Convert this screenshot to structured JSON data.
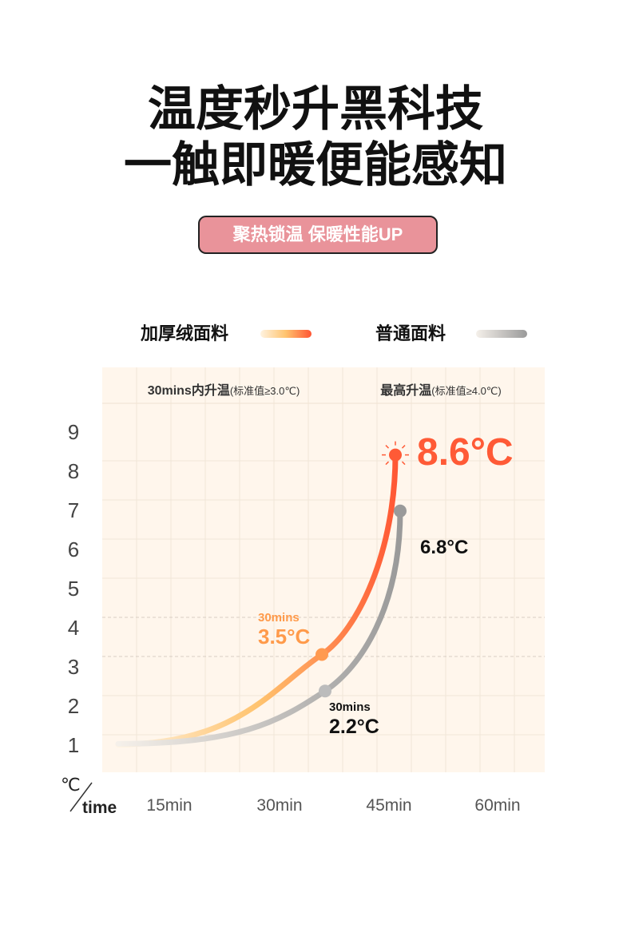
{
  "header": {
    "title_line1": "温度秒升黑科技",
    "title_line2": "一触即暖便能感知",
    "badge": "聚热锁温 保暖性能UP"
  },
  "chart_data": {
    "type": "line",
    "title": "",
    "legend": [
      {
        "name": "加厚绒面料",
        "colors": [
          "#fff3e0",
          "#ffc36e",
          "#ff5533"
        ]
      },
      {
        "name": "普通面料",
        "colors": [
          "#f5f0ea",
          "#9a9a9a"
        ]
      }
    ],
    "legend_placement": "top",
    "column_headers": [
      {
        "main": "30mins内升温",
        "note": "(标准值≥3.0℃)"
      },
      {
        "main": "最高升温",
        "note": "(标准值≥4.0℃)"
      }
    ],
    "ylabel": "℃",
    "xlabel": "time",
    "y_ticks": [
      9,
      8,
      7,
      6,
      5,
      4,
      3,
      2,
      1
    ],
    "x_ticks": [
      "15min",
      "30min",
      "45min",
      "60min"
    ],
    "grid": true,
    "series": [
      {
        "name": "加厚绒面料",
        "color": "#ff5a36",
        "points": [
          {
            "t": 0,
            "v": 1.2
          },
          {
            "t": 30,
            "v": 3.5
          },
          {
            "t": 45,
            "v": 8.6
          }
        ],
        "annotations": [
          {
            "label": "30mins",
            "value": "3.5°C",
            "color": "#ff9a4a"
          },
          {
            "value": "8.6°C",
            "color": "#ff5a36"
          }
        ]
      },
      {
        "name": "普通面料",
        "color": "#9a9a9a",
        "points": [
          {
            "t": 0,
            "v": 0.85
          },
          {
            "t": 30,
            "v": 2.2
          },
          {
            "t": 45,
            "v": 6.8
          }
        ],
        "annotations": [
          {
            "label": "30mins",
            "value": "2.2°C",
            "color": "#111111"
          },
          {
            "value": "6.8°C",
            "color": "#111111"
          }
        ]
      }
    ]
  }
}
